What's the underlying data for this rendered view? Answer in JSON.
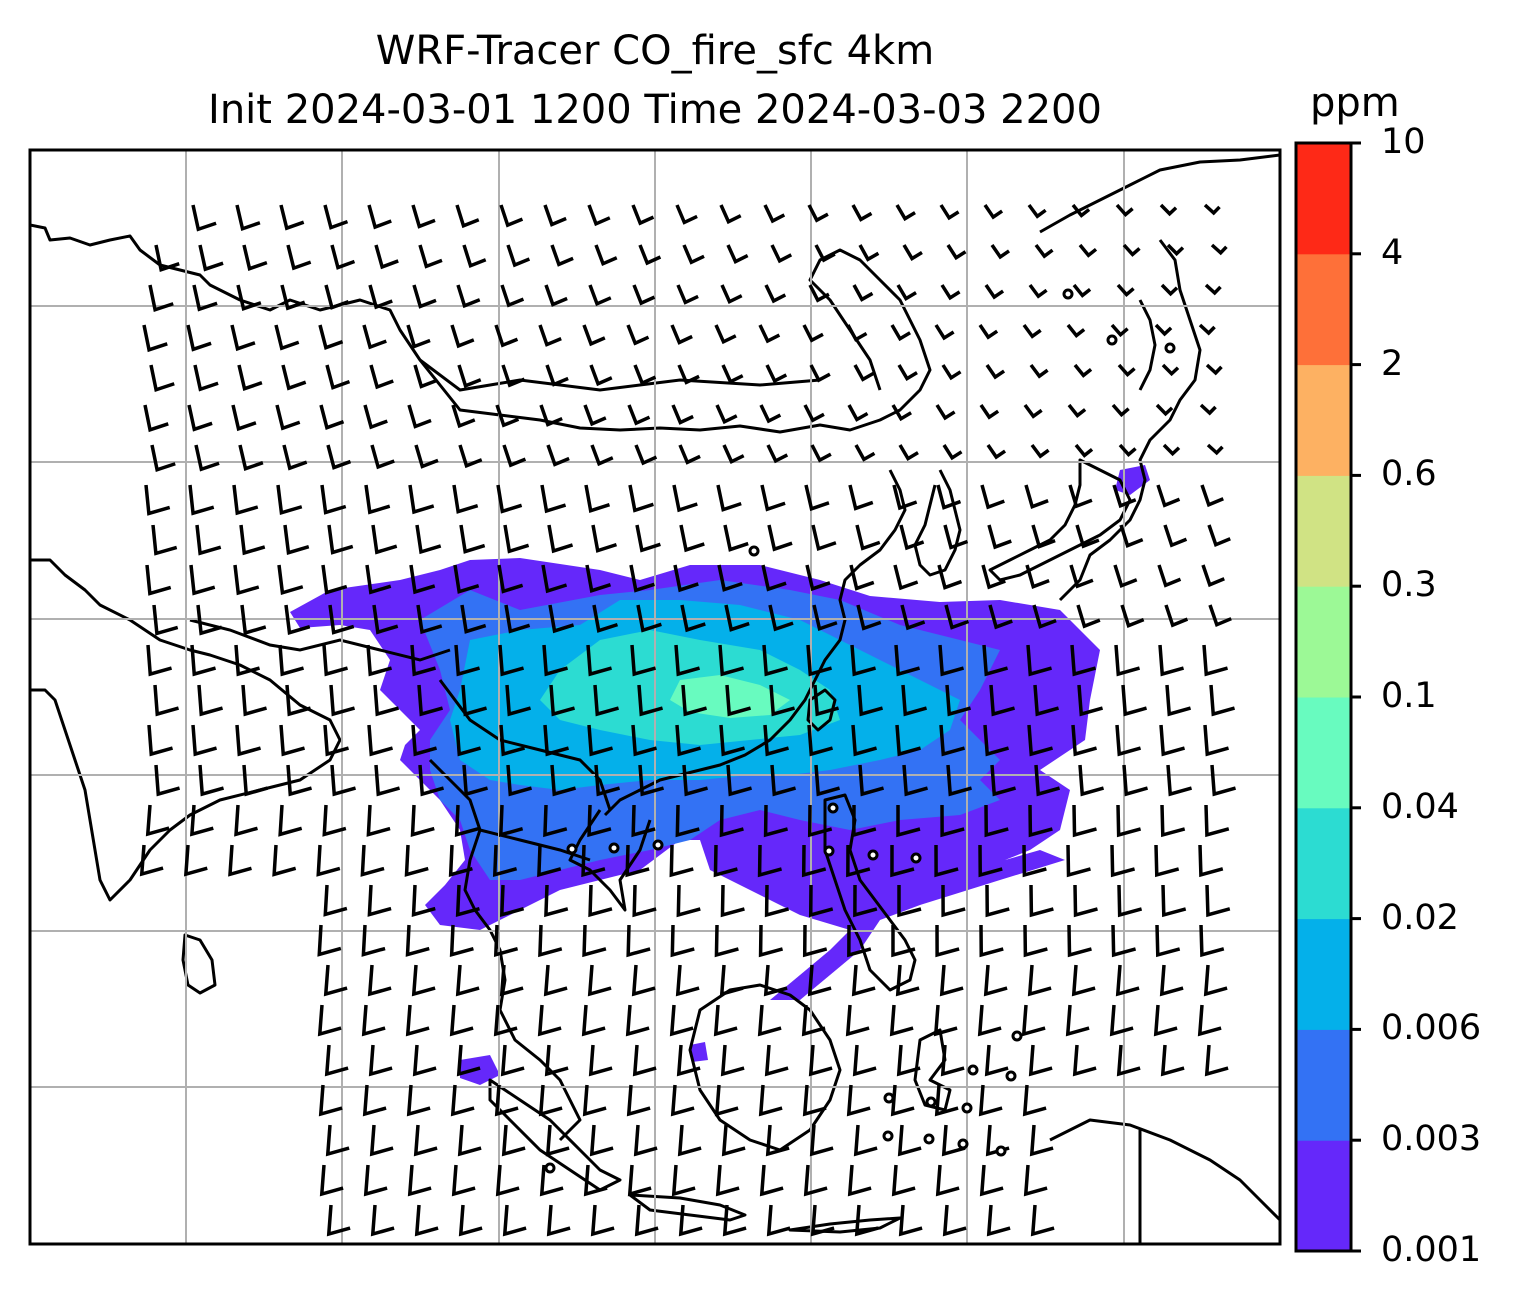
{
  "title": {
    "line1": "WRF-Tracer CO_fire_sfc 4km",
    "line2": "Init 2024-03-01 1200 Time 2024-03-03 2200"
  },
  "colorbar": {
    "unit": "ppm",
    "levels": [
      "0.001",
      "0.003",
      "0.006",
      "0.02",
      "0.04",
      "0.1",
      "0.3",
      "0.6",
      "2",
      "4",
      "10"
    ],
    "colors": [
      "#6528fa",
      "#3372f4",
      "#04b0ea",
      "#2cdcd2",
      "#68fbbf",
      "#9cf996",
      "#d0e384",
      "#fdb162",
      "#fe7039",
      "#fe2917"
    ]
  },
  "map": {
    "grid": true,
    "features": [
      "coastlines",
      "country-borders",
      "wind-barbs",
      "tracer-plume"
    ]
  }
}
